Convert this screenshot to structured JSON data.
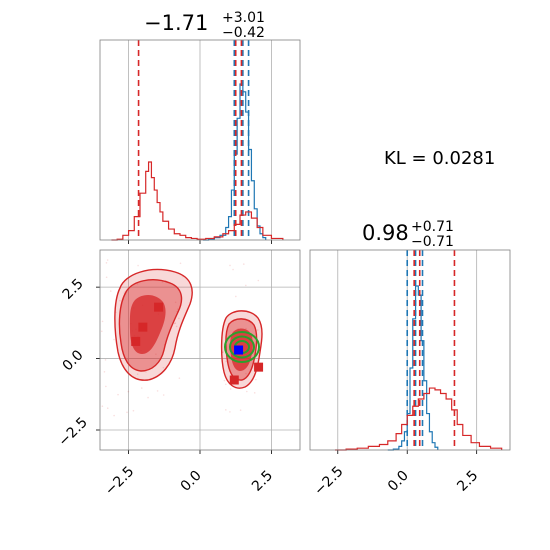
{
  "chart_data": [
    {
      "type": "histogram",
      "panel": "marginal-parameter-1",
      "title": {
        "median": "−1.71",
        "plus": "+3.01",
        "minus": "−0.42"
      },
      "xlim": [
        -3.5,
        3.5
      ],
      "grid": true,
      "series": [
        {
          "color": "#1f77b4",
          "bins": [
            [
              0.1,
              0
            ],
            [
              0.3,
              0.5
            ],
            [
              0.5,
              1.5
            ],
            [
              0.7,
              3
            ],
            [
              0.9,
              8
            ],
            [
              1.0,
              15
            ],
            [
              1.1,
              32
            ],
            [
              1.2,
              55
            ],
            [
              1.3,
              78
            ],
            [
              1.4,
              100
            ],
            [
              1.5,
              95
            ],
            [
              1.6,
              82
            ],
            [
              1.7,
              58
            ],
            [
              1.8,
              38
            ],
            [
              1.9,
              20
            ],
            [
              2.0,
              9
            ],
            [
              2.1,
              4
            ],
            [
              2.2,
              1.5
            ],
            [
              2.3,
              0
            ]
          ],
          "quantile_lines": [
            1.2,
            1.5,
            1.7
          ]
        },
        {
          "color": "#d62728",
          "bins": [
            [
              -3.1,
              0
            ],
            [
              -2.9,
              0.5
            ],
            [
              -2.7,
              3
            ],
            [
              -2.5,
              6
            ],
            [
              -2.3,
              15
            ],
            [
              -2.1,
              30
            ],
            [
              -1.9,
              44
            ],
            [
              -1.8,
              50
            ],
            [
              -1.7,
              40
            ],
            [
              -1.6,
              32
            ],
            [
              -1.5,
              24
            ],
            [
              -1.4,
              18
            ],
            [
              -1.3,
              12
            ],
            [
              -1.1,
              7
            ],
            [
              -0.9,
              4
            ],
            [
              -0.7,
              3
            ],
            [
              -0.5,
              1.5
            ],
            [
              -0.3,
              1
            ],
            [
              -0.1,
              0.5
            ],
            [
              0.2,
              1
            ],
            [
              0.5,
              2
            ],
            [
              0.8,
              4
            ],
            [
              1.0,
              6
            ],
            [
              1.2,
              10
            ],
            [
              1.4,
              16
            ],
            [
              1.6,
              18
            ],
            [
              1.8,
              14
            ],
            [
              2.0,
              8
            ],
            [
              2.2,
              3
            ],
            [
              2.5,
              1
            ],
            [
              2.9,
              0
            ]
          ],
          "quantile_lines": [
            -2.15,
            1.25,
            1.45
          ]
        }
      ]
    },
    {
      "type": "contour-scatter",
      "panel": "joint",
      "xlim": [
        -3.5,
        3.5
      ],
      "ylim": [
        -3.2,
        3.8
      ],
      "x_ticks": [
        "−2.5",
        "0.0",
        "2.5"
      ],
      "y_ticks": [
        "2.5",
        "0.0",
        "−2.5"
      ],
      "grid": true,
      "red_squares": [
        [
          -2.0,
          1.1
        ],
        [
          -1.45,
          1.8
        ],
        [
          -2.25,
          0.6
        ],
        [
          1.2,
          -0.75
        ],
        [
          2.05,
          -0.3
        ]
      ],
      "blue_square": [
        1.35,
        0.3
      ],
      "green_circles_center": [
        1.4,
        0.3
      ],
      "colors": {
        "red": "#d62728",
        "blue": "#0000ff",
        "green": "#2ca02c"
      }
    },
    {
      "type": "histogram",
      "panel": "marginal-parameter-2",
      "title": {
        "median": "0.98",
        "plus": "+0.71",
        "minus": "−0.71"
      },
      "xlim": [
        -3.5,
        3.7
      ],
      "x_ticks": [
        "−2.5",
        "0.0",
        "2.5"
      ],
      "grid": true,
      "series": [
        {
          "color": "#1f77b4",
          "bins": [
            [
              -0.7,
              0
            ],
            [
              -0.5,
              0.5
            ],
            [
              -0.3,
              2
            ],
            [
              -0.2,
              5
            ],
            [
              -0.1,
              10
            ],
            [
              0.0,
              20
            ],
            [
              0.1,
              45
            ],
            [
              0.2,
              72
            ],
            [
              0.3,
              90
            ],
            [
              0.4,
              85
            ],
            [
              0.5,
              60
            ],
            [
              0.6,
              38
            ],
            [
              0.7,
              20
            ],
            [
              0.8,
              10
            ],
            [
              0.9,
              4
            ],
            [
              1.0,
              1.5
            ],
            [
              1.1,
              0
            ]
          ],
          "quantile_lines": [
            0.0,
            0.3,
            0.55
          ]
        },
        {
          "color": "#d62728",
          "bins": [
            [
              -2.6,
              0
            ],
            [
              -2.2,
              0.5
            ],
            [
              -1.8,
              1
            ],
            [
              -1.4,
              2
            ],
            [
              -1.0,
              3
            ],
            [
              -0.7,
              5
            ],
            [
              -0.4,
              9
            ],
            [
              -0.2,
              14
            ],
            [
              0.0,
              19
            ],
            [
              0.2,
              24
            ],
            [
              0.4,
              28
            ],
            [
              0.6,
              31
            ],
            [
              0.8,
              34
            ],
            [
              1.0,
              33
            ],
            [
              1.2,
              31
            ],
            [
              1.4,
              28
            ],
            [
              1.6,
              22
            ],
            [
              1.8,
              14
            ],
            [
              2.0,
              8
            ],
            [
              2.3,
              4
            ],
            [
              2.6,
              2
            ],
            [
              3.0,
              1
            ],
            [
              3.4,
              0
            ]
          ],
          "quantile_lines": [
            0.25,
            0.45,
            1.7
          ]
        }
      ]
    }
  ],
  "annotation": {
    "kl_label": "KL = 0.0281"
  },
  "colors": {
    "grid": "#b0b0b0",
    "frame": "#808080",
    "blue": "#1f77b4",
    "red": "#d62728"
  }
}
